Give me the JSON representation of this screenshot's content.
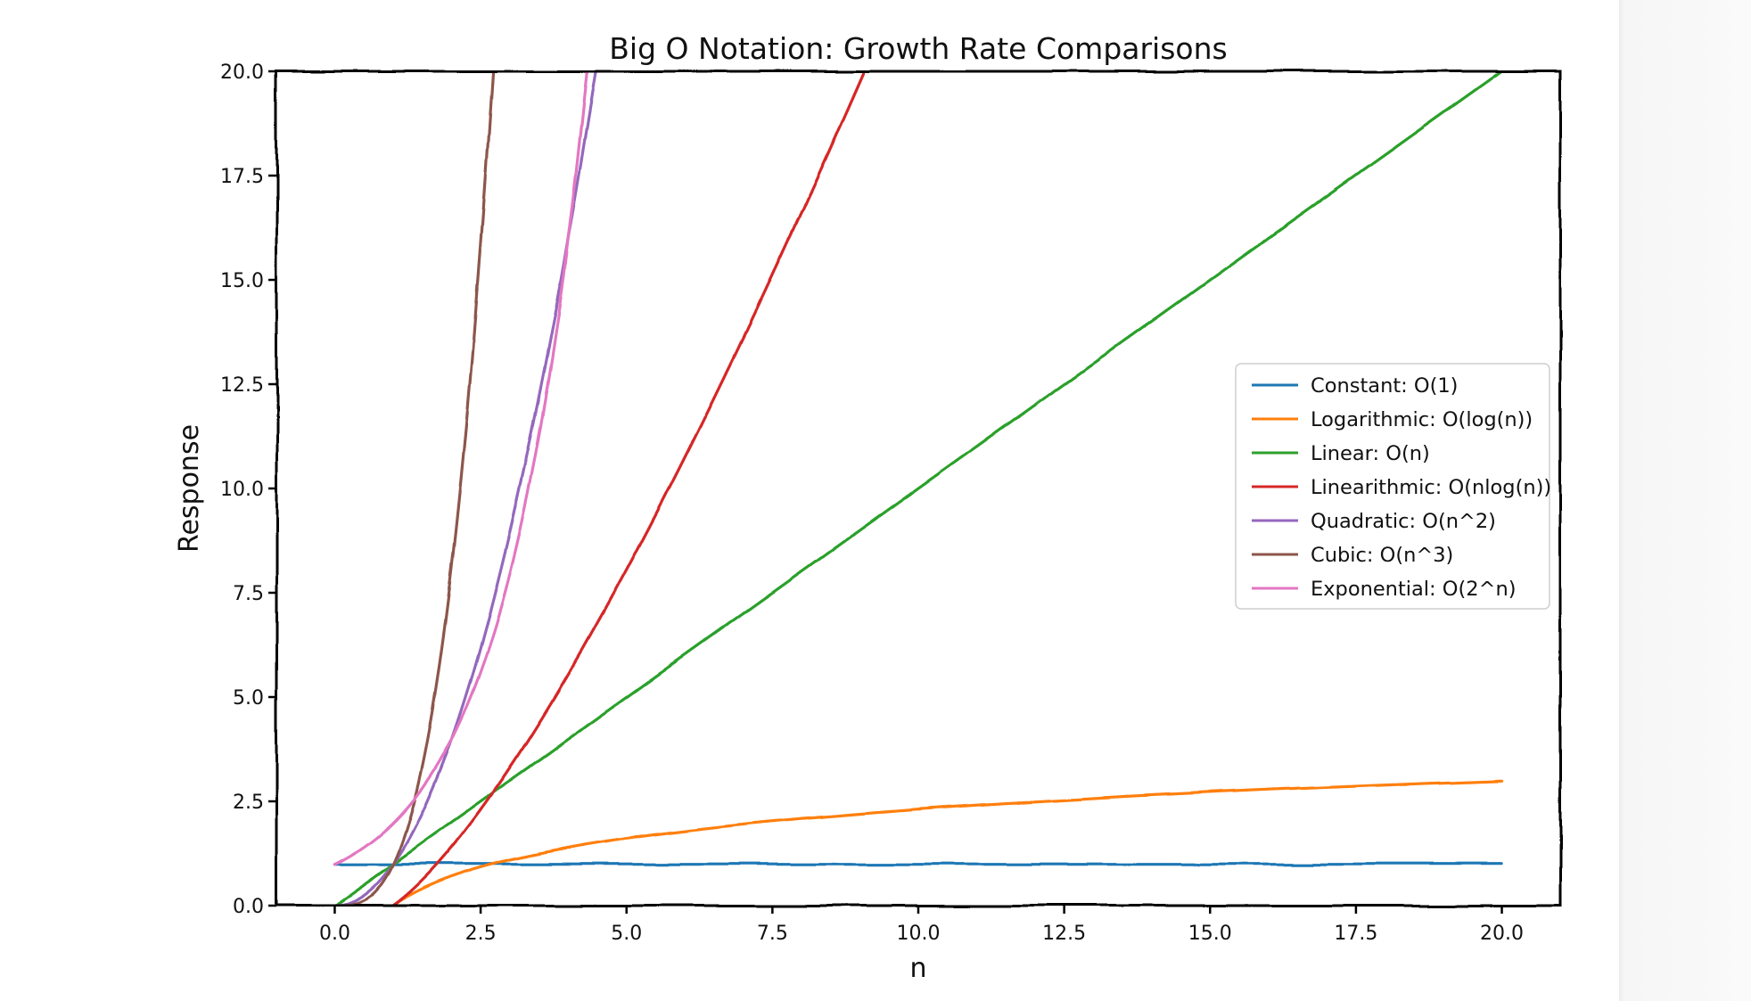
{
  "chart_data": {
    "type": "line",
    "title": "Big O Notation: Growth Rate Comparisons",
    "xlabel": "n",
    "ylabel": "Response",
    "xlim": [
      -1,
      21
    ],
    "ylim": [
      0,
      20
    ],
    "xticks": [
      "0.0",
      "2.5",
      "5.0",
      "7.5",
      "10.0",
      "12.5",
      "15.0",
      "17.5",
      "20.0"
    ],
    "yticks": [
      "0.0",
      "2.5",
      "5.0",
      "7.5",
      "10.0",
      "12.5",
      "15.0",
      "17.5",
      "20.0"
    ],
    "grid": false,
    "legend_position": "center-right",
    "style": "xkcd",
    "x": [
      0.0,
      0.5,
      1.0,
      1.5,
      2.0,
      2.5,
      3.0,
      3.5,
      4.0,
      4.5,
      5.0,
      5.5,
      6.0,
      6.5,
      7.0,
      7.5,
      8.0,
      8.5,
      9.0,
      9.5,
      10.0,
      10.5,
      11.0,
      11.5,
      12.0,
      12.5,
      13.0,
      13.5,
      14.0,
      14.5,
      15.0,
      15.5,
      16.0,
      16.5,
      17.0,
      17.5,
      18.0,
      18.5,
      19.0,
      19.5,
      20.0
    ],
    "series": [
      {
        "name": "Constant: O(1)",
        "function": "1",
        "color": "#1f77b4"
      },
      {
        "name": "Logarithmic: O(log(n))",
        "function": "log(n)",
        "color": "#ff7f0e"
      },
      {
        "name": "Linear: O(n)",
        "function": "n",
        "color": "#2ca02c"
      },
      {
        "name": "Linearithmic: O(nlog(n))",
        "function": "n*log(n)",
        "color": "#d62728"
      },
      {
        "name": "Quadratic: O(n^2)",
        "function": "n^2",
        "color": "#9467bd"
      },
      {
        "name": "Cubic: O(n^3)",
        "function": "n^3",
        "color": "#8c564b"
      },
      {
        "name": "Exponential: O(2^n)",
        "function": "2^n",
        "color": "#e377c2"
      }
    ]
  }
}
